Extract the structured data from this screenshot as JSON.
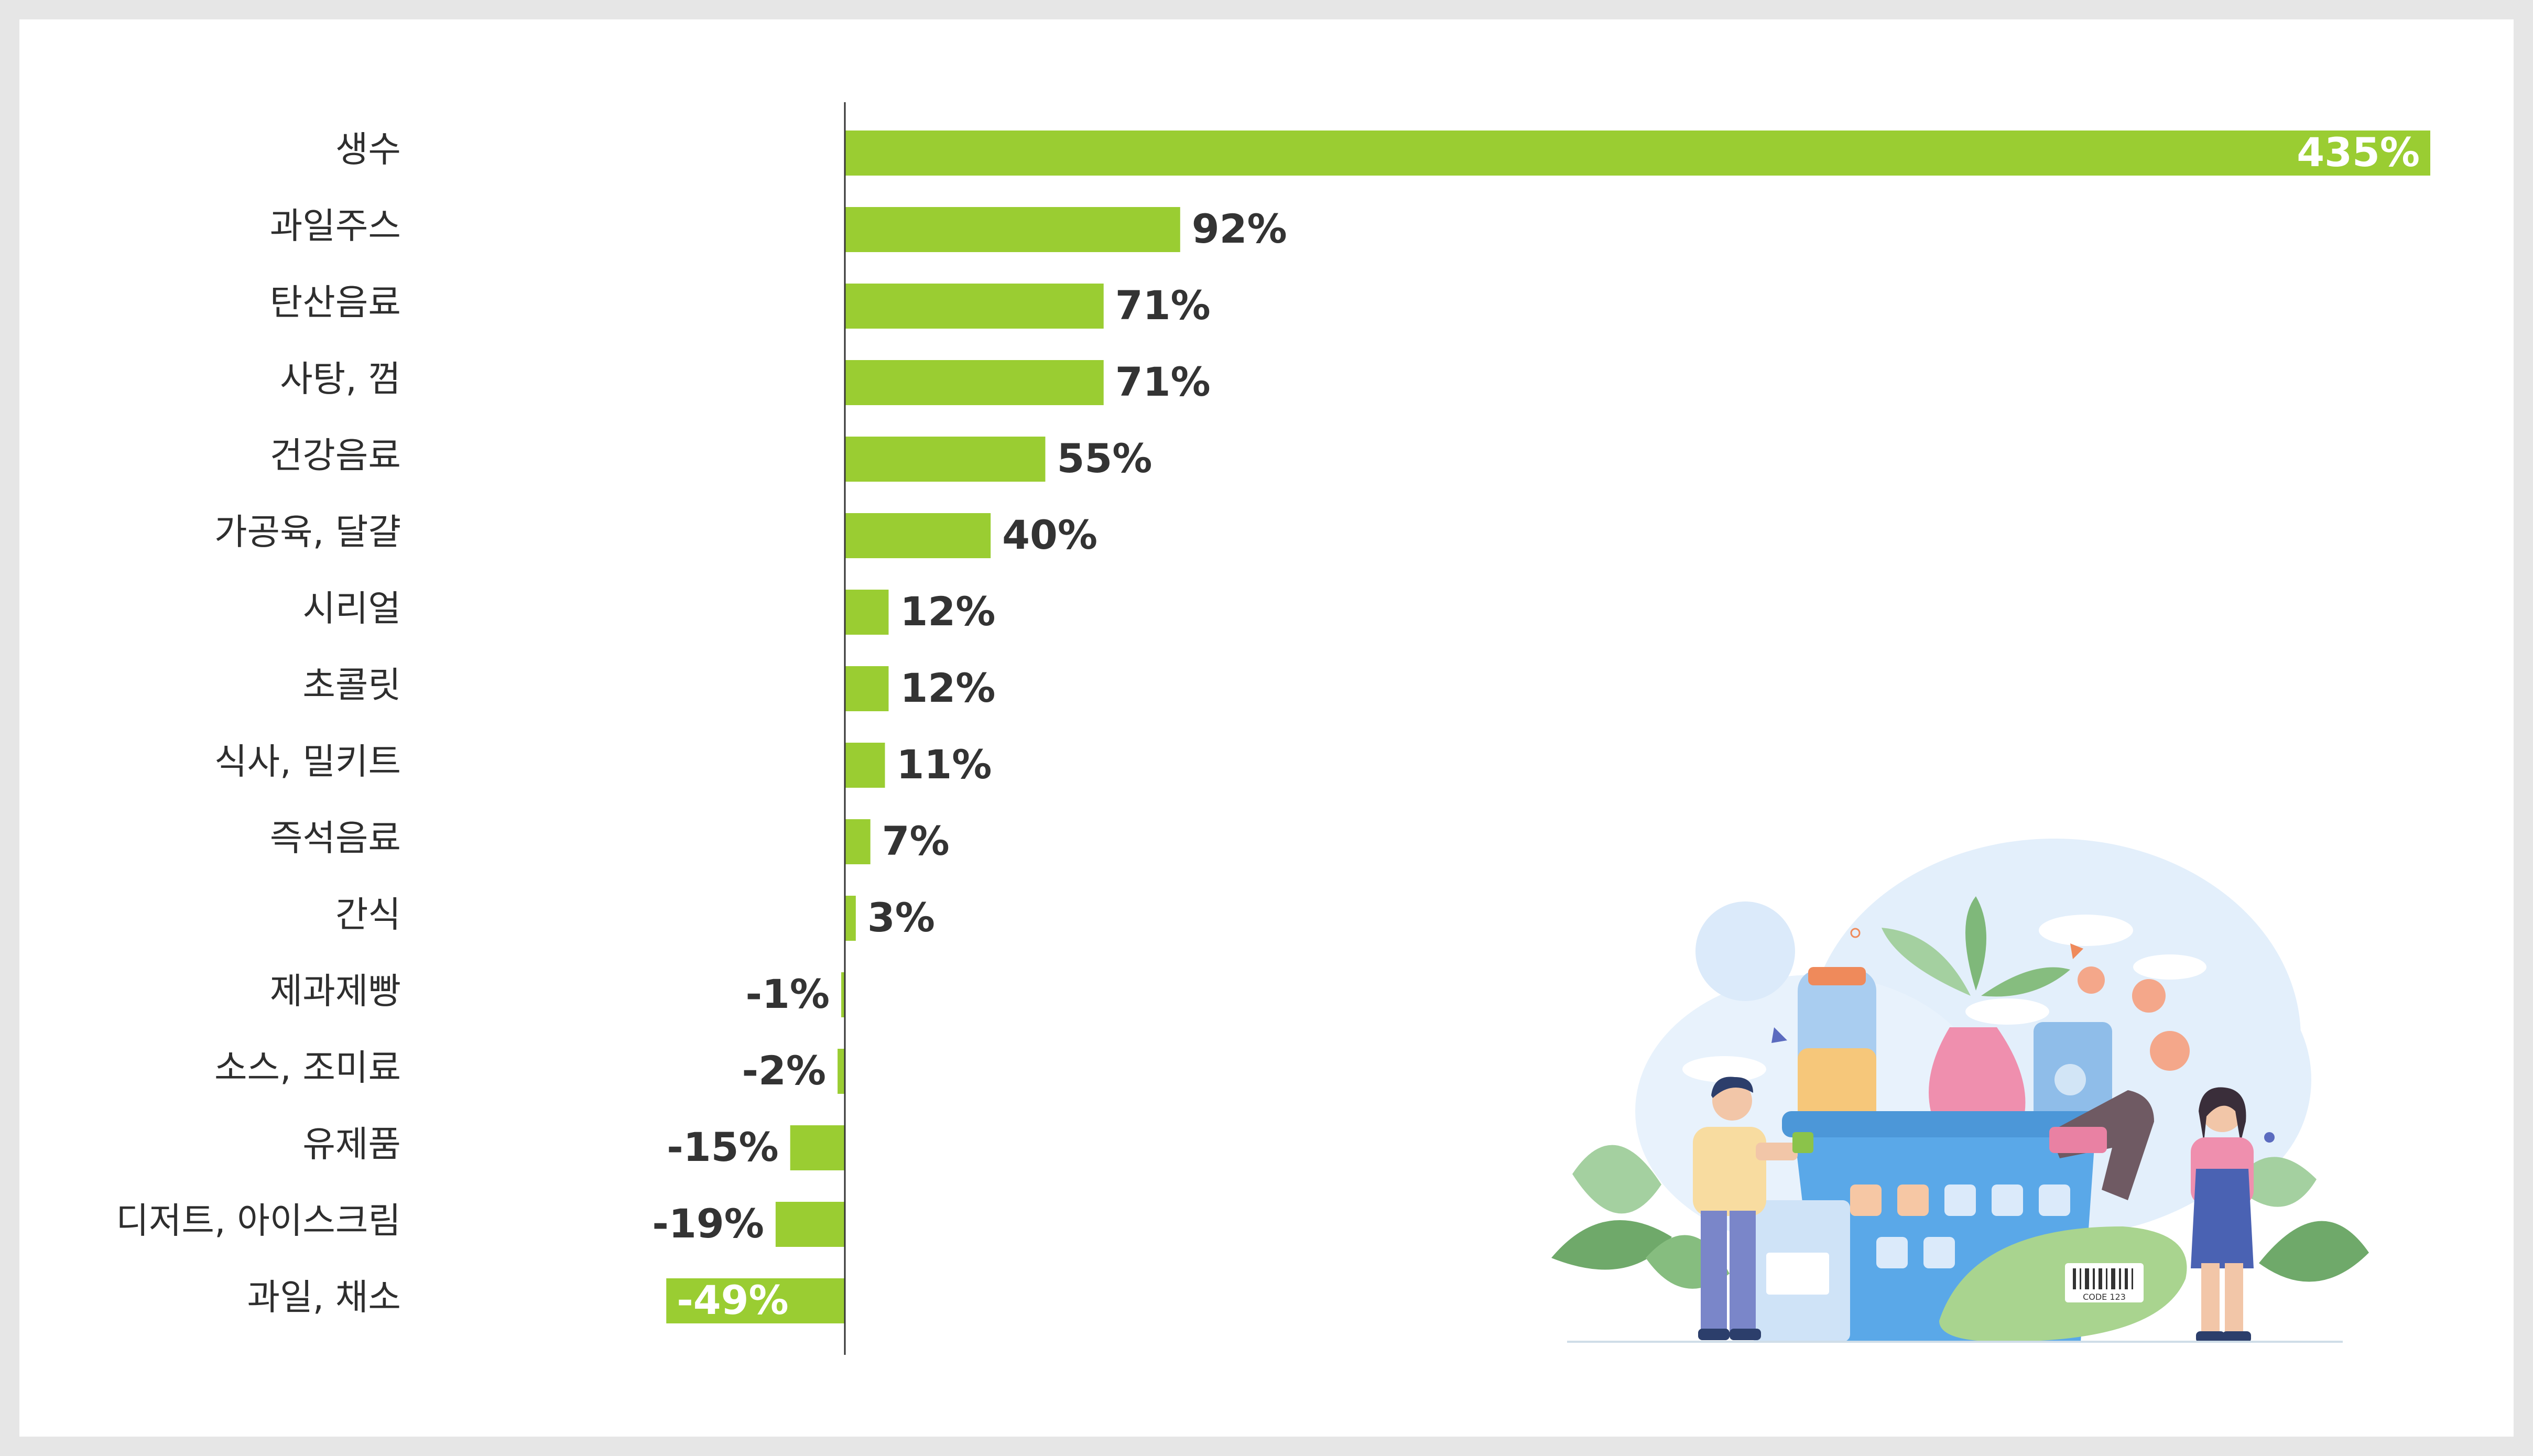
{
  "chart_data": {
    "type": "bar",
    "orientation": "horizontal",
    "categories": [
      "생수",
      "과일주스",
      "탄산음료",
      "사탕, 껌",
      "건강음료",
      "가공육, 달걀",
      "시리얼",
      "초콜릿",
      "식사, 밀키트",
      "즉석음료",
      "간식",
      "제과제빵",
      "소스, 조미료",
      "유제품",
      "디저트, 아이스크림",
      "과일, 채소"
    ],
    "values": [
      435,
      92,
      71,
      71,
      55,
      40,
      12,
      12,
      11,
      7,
      3,
      -1,
      -2,
      -15,
      -19,
      -49
    ],
    "value_labels": [
      "435%",
      "92%",
      "71%",
      "71%",
      "55%",
      "40%",
      "12%",
      "12%",
      "11%",
      "7%",
      "3%",
      "-1%",
      "-2%",
      "-15%",
      "-19%",
      "-49%"
    ],
    "title": "",
    "xlabel": "",
    "ylabel": "",
    "grid": false,
    "legend": "none",
    "bar_color": "#9acd32"
  },
  "colors": {
    "background": "#e6e6e6",
    "card": "#ffffff",
    "axis": "#333333",
    "label_text": "#2e2e2e"
  },
  "illustration": {
    "icon": "grocery-basket-shopping-illustration",
    "barcode_text": "CODE 123"
  }
}
